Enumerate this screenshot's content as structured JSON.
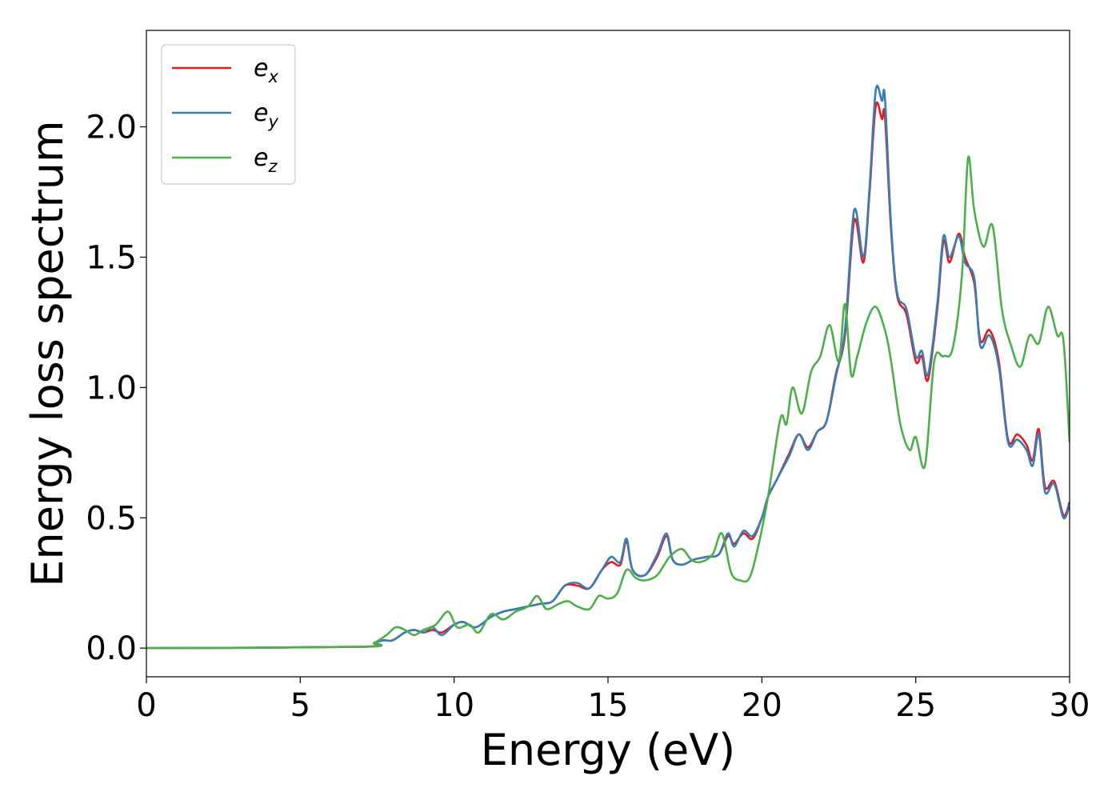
{
  "chart_data": {
    "type": "line",
    "title": "",
    "xlabel": "Energy (eV)",
    "ylabel": "Energy loss spectrum",
    "xlim": [
      0,
      30
    ],
    "ylim": [
      -0.11,
      2.37
    ],
    "xticks": [
      0,
      5,
      10,
      15,
      20,
      25,
      30
    ],
    "xtick_labels": [
      "0",
      "5",
      "10",
      "15",
      "20",
      "25",
      "30"
    ],
    "yticks": [
      0.0,
      0.5,
      1.0,
      1.5,
      2.0
    ],
    "ytick_labels": [
      "0.0",
      "0.5",
      "1.0",
      "1.5",
      "2.0"
    ],
    "grid": false,
    "legend_position": "top-left",
    "series": [
      {
        "name": "e_x",
        "label_base": "e",
        "label_sub": "x",
        "color": "#e41a1c",
        "x": [
          0,
          7,
          7.4,
          7.7,
          8.0,
          8.4,
          8.7,
          9.0,
          9.3,
          9.6,
          10.0,
          10.3,
          10.7,
          11.2,
          11.6,
          12.0,
          12.4,
          12.8,
          13.2,
          13.6,
          14.0,
          14.4,
          14.8,
          15.1,
          15.4,
          15.6,
          15.8,
          16.2,
          16.6,
          16.9,
          17.1,
          17.4,
          17.8,
          18.2,
          18.6,
          18.9,
          19.1,
          19.4,
          19.7,
          20.0,
          20.2,
          20.5,
          20.9,
          21.2,
          21.5,
          21.8,
          22.1,
          22.4,
          22.7,
          23.0,
          23.3,
          23.5,
          23.7,
          23.9,
          24.0,
          24.2,
          24.4,
          24.7,
          25.0,
          25.2,
          25.4,
          25.7,
          25.9,
          26.1,
          26.4,
          26.6,
          26.9,
          27.1,
          27.4,
          27.7,
          28.0,
          28.3,
          28.6,
          28.8,
          29.0,
          29.2,
          29.5,
          29.8,
          30.0
        ],
        "y": [
          0.0,
          0.005,
          0.02,
          0.03,
          0.03,
          0.06,
          0.07,
          0.06,
          0.07,
          0.06,
          0.09,
          0.1,
          0.08,
          0.12,
          0.14,
          0.15,
          0.16,
          0.17,
          0.18,
          0.24,
          0.24,
          0.23,
          0.3,
          0.33,
          0.32,
          0.41,
          0.3,
          0.28,
          0.35,
          0.43,
          0.34,
          0.32,
          0.34,
          0.35,
          0.36,
          0.43,
          0.4,
          0.44,
          0.42,
          0.5,
          0.58,
          0.65,
          0.75,
          0.82,
          0.77,
          0.83,
          0.87,
          1.05,
          1.2,
          1.64,
          1.48,
          1.75,
          2.08,
          2.03,
          2.04,
          1.6,
          1.35,
          1.28,
          1.1,
          1.12,
          1.03,
          1.3,
          1.56,
          1.48,
          1.59,
          1.5,
          1.4,
          1.18,
          1.22,
          1.1,
          0.8,
          0.82,
          0.78,
          0.72,
          0.84,
          0.62,
          0.64,
          0.51,
          0.56
        ]
      },
      {
        "name": "e_y",
        "label_base": "e",
        "label_sub": "y",
        "color": "#377eb8",
        "x": [
          0,
          7,
          7.4,
          7.7,
          8.0,
          8.4,
          8.7,
          9.0,
          9.3,
          9.6,
          10.0,
          10.3,
          10.7,
          11.2,
          11.6,
          12.0,
          12.4,
          12.8,
          13.2,
          13.6,
          14.0,
          14.4,
          14.8,
          15.1,
          15.4,
          15.6,
          15.8,
          16.2,
          16.6,
          16.9,
          17.1,
          17.4,
          17.8,
          18.2,
          18.6,
          18.9,
          19.1,
          19.4,
          19.7,
          20.0,
          20.2,
          20.5,
          20.9,
          21.2,
          21.5,
          21.8,
          22.1,
          22.4,
          22.7,
          23.0,
          23.3,
          23.5,
          23.7,
          23.9,
          24.0,
          24.2,
          24.4,
          24.7,
          25.0,
          25.2,
          25.4,
          25.7,
          25.9,
          26.1,
          26.4,
          26.6,
          26.9,
          27.1,
          27.4,
          27.7,
          28.0,
          28.3,
          28.6,
          28.8,
          29.0,
          29.2,
          29.5,
          29.8,
          30.0
        ],
        "y": [
          0.0,
          0.005,
          0.02,
          0.03,
          0.03,
          0.06,
          0.07,
          0.06,
          0.08,
          0.05,
          0.09,
          0.1,
          0.08,
          0.12,
          0.14,
          0.15,
          0.16,
          0.17,
          0.18,
          0.24,
          0.25,
          0.23,
          0.3,
          0.35,
          0.33,
          0.42,
          0.3,
          0.28,
          0.36,
          0.44,
          0.34,
          0.32,
          0.34,
          0.35,
          0.36,
          0.44,
          0.39,
          0.45,
          0.43,
          0.5,
          0.58,
          0.65,
          0.74,
          0.82,
          0.76,
          0.83,
          0.87,
          1.04,
          1.22,
          1.68,
          1.5,
          1.77,
          2.14,
          2.1,
          2.11,
          1.62,
          1.36,
          1.3,
          1.12,
          1.14,
          1.05,
          1.32,
          1.58,
          1.5,
          1.58,
          1.48,
          1.42,
          1.16,
          1.2,
          1.08,
          0.79,
          0.8,
          0.76,
          0.7,
          0.82,
          0.6,
          0.63,
          0.5,
          0.55
        ]
      },
      {
        "name": "e_z",
        "label_base": "e",
        "label_sub": "z",
        "color": "#4daf4a",
        "x": [
          0,
          7,
          7.4,
          7.8,
          8.1,
          8.4,
          8.7,
          9.0,
          9.4,
          9.8,
          10.1,
          10.5,
          10.8,
          11.2,
          11.6,
          12.0,
          12.4,
          12.7,
          13.0,
          13.4,
          13.7,
          14.0,
          14.4,
          14.7,
          15.0,
          15.3,
          15.6,
          15.9,
          16.2,
          16.6,
          17.0,
          17.4,
          17.7,
          18.0,
          18.4,
          18.7,
          19.0,
          19.3,
          19.6,
          19.9,
          20.2,
          20.6,
          20.8,
          21.0,
          21.3,
          21.6,
          21.9,
          22.2,
          22.5,
          22.7,
          22.9,
          23.1,
          23.4,
          23.7,
          24.0,
          24.2,
          24.5,
          24.8,
          25.0,
          25.3,
          25.6,
          25.9,
          26.2,
          26.5,
          26.7,
          26.9,
          27.2,
          27.5,
          27.8,
          28.1,
          28.4,
          28.7,
          29.0,
          29.3,
          29.6,
          29.8,
          30.0
        ],
        "y": [
          0.0,
          0.005,
          0.02,
          0.05,
          0.08,
          0.07,
          0.05,
          0.07,
          0.09,
          0.14,
          0.08,
          0.09,
          0.06,
          0.13,
          0.11,
          0.14,
          0.16,
          0.2,
          0.15,
          0.17,
          0.18,
          0.16,
          0.15,
          0.2,
          0.19,
          0.21,
          0.3,
          0.27,
          0.26,
          0.28,
          0.35,
          0.38,
          0.34,
          0.33,
          0.36,
          0.44,
          0.29,
          0.26,
          0.27,
          0.4,
          0.58,
          0.88,
          0.86,
          1.0,
          0.9,
          1.06,
          1.12,
          1.24,
          1.1,
          1.32,
          1.05,
          1.12,
          1.25,
          1.31,
          1.22,
          1.1,
          0.86,
          0.76,
          0.81,
          0.7,
          1.1,
          1.12,
          1.15,
          1.43,
          1.88,
          1.68,
          1.54,
          1.62,
          1.3,
          1.16,
          1.08,
          1.2,
          1.17,
          1.31,
          1.2,
          1.18,
          0.79
        ]
      }
    ]
  }
}
